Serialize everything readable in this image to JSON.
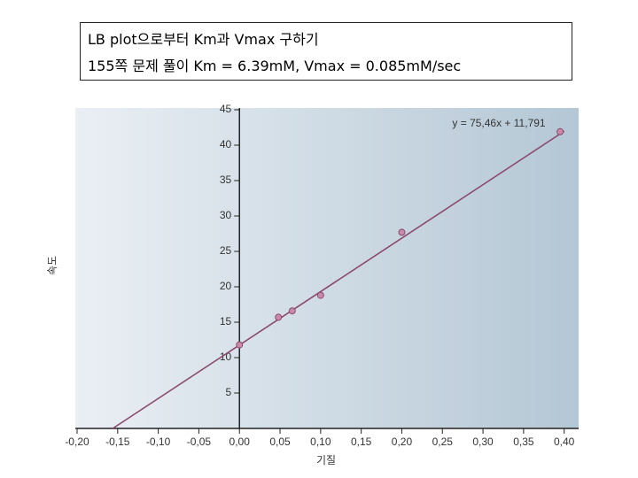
{
  "header": {
    "line1": "LB plot으로부터 Km과  Vmax 구하기",
    "line2": "155쪽 문제 풀이  Km = 6.39mM,  Vmax = 0.085mM/sec"
  },
  "chart_data": {
    "type": "scatter",
    "annotation": "y = 75,46x + 11,791",
    "x_label": "기질",
    "y_label": "속도",
    "x": [
      0,
      0.048,
      0.065,
      0.1,
      0.2,
      0.395
    ],
    "series": [
      {
        "color": "#c98aa8",
        "values": [
          11.8,
          15.7,
          16.6,
          18.8,
          27.7,
          41.9
        ]
      }
    ],
    "trendline": {
      "color": "#8b4a6e",
      "x": [
        -0.156,
        0.4
      ],
      "y": [
        0,
        41.97
      ]
    },
    "xlim": [
      -0.2,
      0.42
    ],
    "ylim": [
      0,
      45
    ],
    "xticks": [
      {
        "value": -0.2,
        "label": "-0,20"
      },
      {
        "value": -0.15,
        "label": "-0,15"
      },
      {
        "value": -0.1,
        "label": "-0,10"
      },
      {
        "value": -0.05,
        "label": "-0,05"
      },
      {
        "value": 0,
        "label": "0,00"
      },
      {
        "value": 0.05,
        "label": "0,05"
      },
      {
        "value": 0.1,
        "label": "0,10"
      },
      {
        "value": 0.15,
        "label": "0,15"
      },
      {
        "value": 0.2,
        "label": "0,20"
      },
      {
        "value": 0.25,
        "label": "0,25"
      },
      {
        "value": 0.3,
        "label": "0,30"
      },
      {
        "value": 0.35,
        "label": "0,35"
      },
      {
        "value": 0.4,
        "label": "0,40"
      }
    ],
    "yticks": [
      5,
      10,
      15,
      20,
      25,
      30,
      35,
      40,
      45
    ]
  }
}
